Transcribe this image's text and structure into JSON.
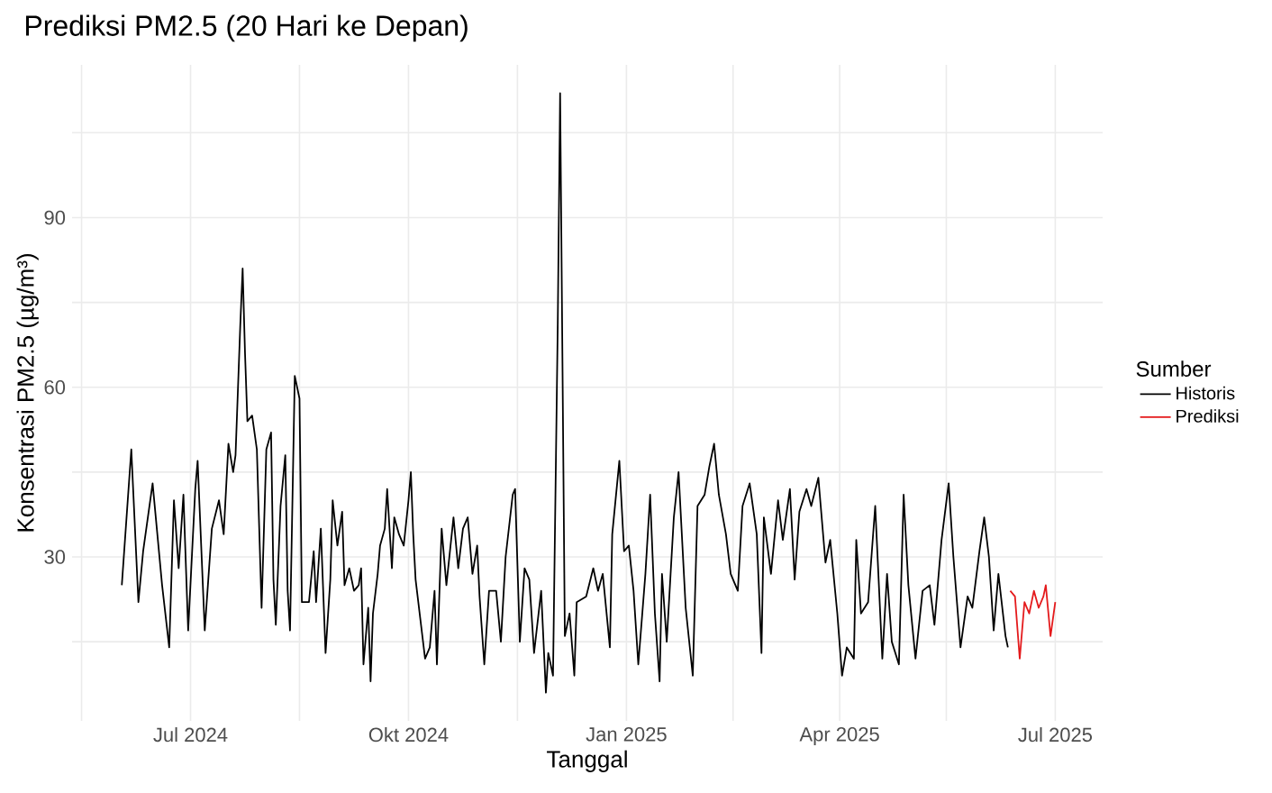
{
  "chart_data": {
    "type": "line",
    "title": "Prediksi PM2.5 (20 Hari ke Depan)",
    "xlabel": "Tanggal",
    "ylabel": "Konsentrasi PM2.5 (µg/m³)",
    "legend_title": "Sumber",
    "legend": "right",
    "grid": true,
    "marker": "none",
    "line_style": "solid",
    "xlim": [
      "2024-05-12",
      "2025-07-21"
    ],
    "ylim": [
      1,
      117
    ],
    "xticks": [
      {
        "value": "2024-05-16",
        "label": null
      },
      {
        "value": "2024-07-01",
        "label": "Jul 2024"
      },
      {
        "value": "2024-08-16",
        "label": null
      },
      {
        "value": "2024-10-01",
        "label": "Okt 2024"
      },
      {
        "value": "2024-11-16",
        "label": null
      },
      {
        "value": "2025-01-01",
        "label": "Jan 2025"
      },
      {
        "value": "2025-02-15",
        "label": null
      },
      {
        "value": "2025-04-01",
        "label": "Apr 2025"
      },
      {
        "value": "2025-05-16",
        "label": null
      },
      {
        "value": "2025-07-01",
        "label": "Jul 2025"
      }
    ],
    "yticks": [
      {
        "value": 15,
        "label": null
      },
      30,
      {
        "value": 45,
        "label": null
      },
      60,
      {
        "value": 75,
        "label": null
      },
      90,
      {
        "value": 105,
        "label": null
      }
    ],
    "series": [
      {
        "name": "Historis",
        "color": "#000000",
        "x": [
          "2024-06-02",
          "2024-06-06",
          "2024-06-09",
          "2024-06-11",
          "2024-06-15",
          "2024-06-19",
          "2024-06-22",
          "2024-06-24",
          "2024-06-26",
          "2024-06-28",
          "2024-06-30",
          "2024-07-03",
          "2024-07-04",
          "2024-07-07",
          "2024-07-10",
          "2024-07-13",
          "2024-07-15",
          "2024-07-17",
          "2024-07-19",
          "2024-07-20",
          "2024-07-22",
          "2024-07-23",
          "2024-07-24",
          "2024-07-25",
          "2024-07-27",
          "2024-07-29",
          "2024-07-31",
          "2024-08-02",
          "2024-08-04",
          "2024-08-05",
          "2024-08-06",
          "2024-08-08",
          "2024-08-10",
          "2024-08-11",
          "2024-08-12",
          "2024-08-14",
          "2024-08-16",
          "2024-08-17",
          "2024-08-20",
          "2024-08-22",
          "2024-08-23",
          "2024-08-25",
          "2024-08-27",
          "2024-08-29",
          "2024-08-30",
          "2024-09-01",
          "2024-09-03",
          "2024-09-04",
          "2024-09-06",
          "2024-09-08",
          "2024-09-10",
          "2024-09-11",
          "2024-09-12",
          "2024-09-14",
          "2024-09-15",
          "2024-09-16",
          "2024-09-18",
          "2024-09-19",
          "2024-09-21",
          "2024-09-22",
          "2024-09-24",
          "2024-09-25",
          "2024-09-27",
          "2024-09-29",
          "2024-10-01",
          "2024-10-02",
          "2024-10-03",
          "2024-10-04",
          "2024-10-08",
          "2024-10-10",
          "2024-10-12",
          "2024-10-13",
          "2024-10-15",
          "2024-10-17",
          "2024-10-20",
          "2024-10-22",
          "2024-10-24",
          "2024-10-26",
          "2024-10-28",
          "2024-10-30",
          "2024-10-31",
          "2024-11-02",
          "2024-11-04",
          "2024-11-07",
          "2024-11-09",
          "2024-11-11",
          "2024-11-14",
          "2024-11-15",
          "2024-11-17",
          "2024-11-19",
          "2024-11-21",
          "2024-11-23",
          "2024-11-26",
          "2024-11-28",
          "2024-11-29",
          "2024-12-01",
          "2024-12-03",
          "2024-12-04",
          "2024-12-05",
          "2024-12-06",
          "2024-12-08",
          "2024-12-10",
          "2024-12-11",
          "2024-12-15",
          "2024-12-18",
          "2024-12-20",
          "2024-12-22",
          "2024-12-25",
          "2024-12-26",
          "2024-12-29",
          "2024-12-31",
          "2025-01-02",
          "2025-01-04",
          "2025-01-06",
          "2025-01-09",
          "2025-01-11",
          "2025-01-13",
          "2025-01-15",
          "2025-01-16",
          "2025-01-18",
          "2025-01-21",
          "2025-01-23",
          "2025-01-26",
          "2025-01-29",
          "2025-01-31",
          "2025-02-03",
          "2025-02-05",
          "2025-02-07",
          "2025-02-09",
          "2025-02-12",
          "2025-02-14",
          "2025-02-17",
          "2025-02-19",
          "2025-02-22",
          "2025-02-25",
          "2025-02-27",
          "2025-02-28",
          "2025-03-03",
          "2025-03-06",
          "2025-03-08",
          "2025-03-11",
          "2025-03-13",
          "2025-03-15",
          "2025-03-18",
          "2025-03-20",
          "2025-03-23",
          "2025-03-26",
          "2025-03-28",
          "2025-03-31",
          "2025-04-02",
          "2025-04-04",
          "2025-04-07",
          "2025-04-08",
          "2025-04-10",
          "2025-04-13",
          "2025-04-16",
          "2025-04-19",
          "2025-04-21",
          "2025-04-23",
          "2025-04-26",
          "2025-04-28",
          "2025-04-30",
          "2025-05-03",
          "2025-05-06",
          "2025-05-09",
          "2025-05-11",
          "2025-05-14",
          "2025-05-17",
          "2025-05-19",
          "2025-05-22",
          "2025-05-25",
          "2025-05-27",
          "2025-05-30",
          "2025-06-01",
          "2025-06-03",
          "2025-06-05",
          "2025-06-07",
          "2025-06-10",
          "2025-06-11"
        ],
        "values": [
          25,
          49,
          22,
          31,
          43,
          25,
          14,
          40,
          28,
          41,
          17,
          42,
          47,
          17,
          35,
          40,
          34,
          50,
          45,
          48,
          71,
          81,
          66,
          54,
          55,
          49,
          21,
          49,
          52,
          26,
          18,
          39,
          48,
          24,
          17,
          62,
          58,
          22,
          22,
          31,
          22,
          35,
          13,
          26,
          40,
          32,
          38,
          25,
          28,
          24,
          25,
          28,
          11,
          21,
          8,
          20,
          27,
          32,
          35,
          42,
          28,
          37,
          34,
          32,
          40,
          45,
          34,
          26,
          12,
          14,
          24,
          11,
          35,
          25,
          37,
          28,
          35,
          37,
          27,
          32,
          23,
          11,
          24,
          24,
          15,
          30,
          41,
          42,
          15,
          28,
          26,
          13,
          24,
          6,
          13,
          9,
          71,
          112,
          64,
          16,
          20,
          9,
          22,
          23,
          28,
          24,
          27,
          14,
          34,
          47,
          31,
          32,
          24,
          11,
          27,
          41,
          20,
          8,
          27,
          15,
          37,
          45,
          21,
          9,
          39,
          41,
          46,
          50,
          41,
          34,
          27,
          24,
          39,
          43,
          34,
          13,
          37,
          27,
          40,
          33,
          42,
          26,
          38,
          42,
          39,
          44,
          29,
          33,
          20,
          9,
          14,
          12,
          33,
          20,
          22,
          39,
          12,
          27,
          15,
          11,
          41,
          25,
          12,
          24,
          25,
          18,
          33,
          43,
          30,
          14,
          23,
          21,
          31,
          37,
          30,
          17,
          27,
          16,
          14
        ]
      },
      {
        "name": "Prediksi",
        "color": "#e41a1c",
        "x": [
          "2025-06-12",
          "2025-06-14",
          "2025-06-16",
          "2025-06-18",
          "2025-06-20",
          "2025-06-22",
          "2025-06-24",
          "2025-06-26",
          "2025-06-27",
          "2025-06-29",
          "2025-07-01"
        ],
        "values": [
          24,
          23,
          12,
          22,
          20,
          24,
          21,
          23,
          25,
          16,
          22
        ]
      }
    ]
  }
}
